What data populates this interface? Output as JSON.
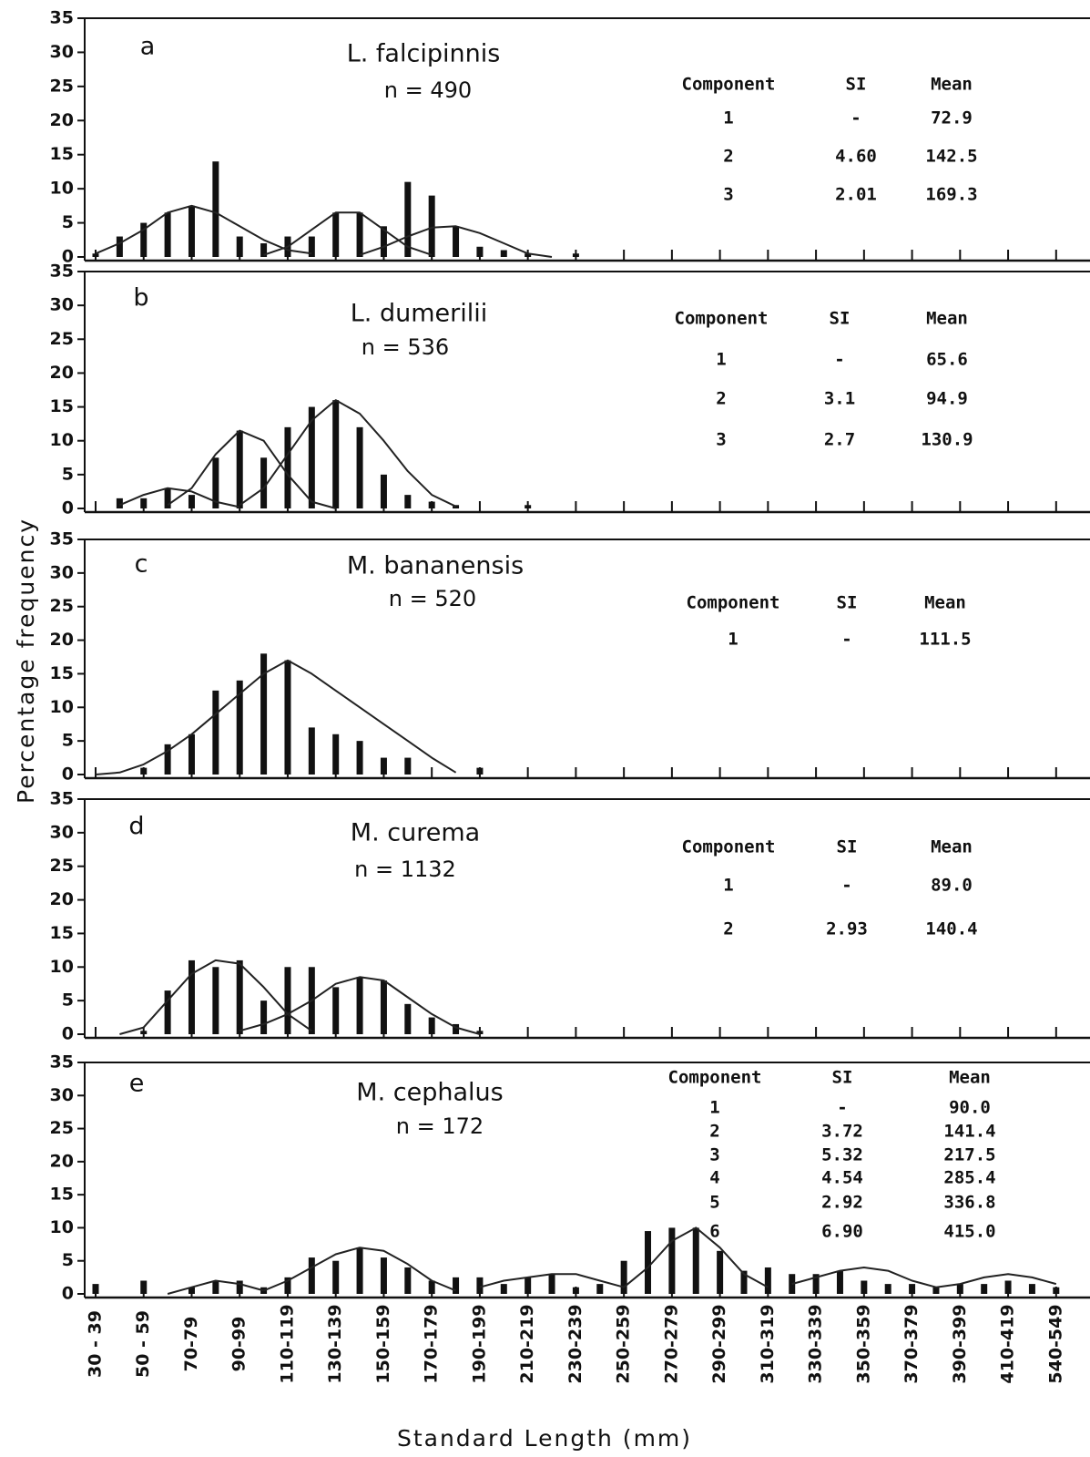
{
  "xlabel": "Standard Length (mm)",
  "ylabel": "Percentage frequency",
  "chart_data": [
    {
      "type": "bar",
      "label": "a",
      "title": "L. falcipinnis",
      "subtitle": "n = 490",
      "color": "#111",
      "ylim": [
        0,
        35
      ],
      "yticks": [
        0,
        5,
        10,
        15,
        20,
        25,
        30,
        35
      ],
      "values": [
        0.5,
        3,
        5,
        6.5,
        7.5,
        14,
        3,
        2,
        3,
        3,
        6.5,
        6.5,
        4.5,
        11,
        9,
        4.5,
        1.5,
        1,
        0.5,
        null,
        0.5,
        null,
        null,
        null,
        null,
        null,
        null,
        null,
        null,
        null,
        null,
        null,
        null,
        null,
        null,
        null,
        null,
        null,
        null,
        null,
        null
      ],
      "curves": [
        {
          "values": [
            0.5,
            2,
            4,
            6.5,
            7.5,
            6.5,
            4.5,
            2.5,
            1,
            0.5,
            null,
            null,
            null,
            null,
            null,
            null,
            null,
            null,
            null,
            null,
            null,
            null,
            null,
            null,
            null,
            null,
            null,
            null,
            null,
            null,
            null,
            null,
            null,
            null,
            null,
            null,
            null,
            null,
            null,
            null,
            null
          ]
        },
        {
          "values": [
            null,
            null,
            null,
            null,
            null,
            null,
            null,
            0.3,
            1.5,
            4,
            6.5,
            6.5,
            4,
            1.5,
            0.3,
            null,
            null,
            null,
            null,
            null,
            null,
            null,
            null,
            null,
            null,
            null,
            null,
            null,
            null,
            null,
            null,
            null,
            null,
            null,
            null,
            null,
            null,
            null,
            null,
            null,
            null
          ]
        },
        {
          "values": [
            null,
            null,
            null,
            null,
            null,
            null,
            null,
            null,
            null,
            null,
            null,
            0.3,
            1.5,
            3,
            4.3,
            4.5,
            3.5,
            2,
            0.5,
            0,
            null,
            null,
            null,
            null,
            null,
            null,
            null,
            null,
            null,
            null,
            null,
            null,
            null,
            null,
            null,
            null,
            null,
            null,
            null,
            null,
            null
          ]
        }
      ],
      "table": {
        "columns": [
          "Component",
          "SI",
          "Mean"
        ],
        "rows": [
          [
            "1",
            "-",
            "72.9"
          ],
          [
            "2",
            "4.60",
            "142.5"
          ],
          [
            "3",
            "2.01",
            "169.3"
          ]
        ]
      }
    },
    {
      "type": "bar",
      "label": "b",
      "title": "L. dumerilii",
      "subtitle": "n = 536",
      "color": "#111",
      "ylim": [
        0,
        35
      ],
      "yticks": [
        0,
        5,
        10,
        15,
        20,
        25,
        30,
        35
      ],
      "values": [
        null,
        1.5,
        1.5,
        3,
        2,
        7.5,
        11.5,
        7.5,
        12,
        15,
        16,
        12,
        5,
        2,
        1,
        0.5,
        null,
        null,
        0.5,
        null,
        null,
        null,
        null,
        null,
        null,
        null,
        null,
        null,
        null,
        null,
        null,
        null,
        null,
        null,
        null,
        null,
        null,
        null,
        null,
        null,
        null
      ],
      "curves": [
        {
          "values": [
            null,
            0.5,
            2,
            3,
            2.5,
            1,
            0.2,
            null,
            null,
            null,
            null,
            null,
            null,
            null,
            null,
            null,
            null,
            null,
            null,
            null,
            null,
            null,
            null,
            null,
            null,
            null,
            null,
            null,
            null,
            null,
            null,
            null,
            null,
            null,
            null,
            null,
            null,
            null,
            null,
            null,
            null
          ]
        },
        {
          "values": [
            null,
            null,
            null,
            0.5,
            3,
            8,
            11.5,
            10,
            5,
            1,
            0,
            null,
            null,
            null,
            null,
            null,
            null,
            null,
            null,
            null,
            null,
            null,
            null,
            null,
            null,
            null,
            null,
            null,
            null,
            null,
            null,
            null,
            null,
            null,
            null,
            null,
            null,
            null,
            null,
            null,
            null
          ]
        },
        {
          "values": [
            null,
            null,
            null,
            null,
            null,
            null,
            0.5,
            3,
            8,
            13,
            16,
            14,
            10,
            5.5,
            2,
            0.3,
            null,
            null,
            null,
            null,
            null,
            null,
            null,
            null,
            null,
            null,
            null,
            null,
            null,
            null,
            null,
            null,
            null,
            null,
            null,
            null,
            null,
            null,
            null,
            null,
            null
          ]
        }
      ],
      "table": {
        "columns": [
          "Component",
          "SI",
          "Mean"
        ],
        "rows": [
          [
            "1",
            "-",
            "65.6"
          ],
          [
            "2",
            "3.1",
            "94.9"
          ],
          [
            "3",
            "2.7",
            "130.9"
          ]
        ]
      }
    },
    {
      "type": "bar",
      "label": "c",
      "title": "M. bananensis",
      "subtitle": "n = 520",
      "color": "#111",
      "ylim": [
        0,
        35
      ],
      "yticks": [
        0,
        5,
        10,
        15,
        20,
        25,
        30,
        35
      ],
      "values": [
        null,
        null,
        1,
        4.5,
        6,
        12.5,
        14,
        18,
        17,
        7,
        6,
        5,
        2.5,
        2.5,
        null,
        null,
        1,
        null,
        null,
        null,
        null,
        null,
        null,
        null,
        null,
        null,
        null,
        null,
        null,
        null,
        null,
        null,
        null,
        null,
        null,
        null,
        null,
        null,
        null,
        null,
        null
      ],
      "curves": [
        {
          "values": [
            0,
            0.3,
            1.5,
            3.5,
            6,
            9,
            12,
            15,
            17,
            15,
            12.5,
            10,
            7.5,
            5,
            2.5,
            0.3,
            null,
            null,
            null,
            null,
            null,
            null,
            null,
            null,
            null,
            null,
            null,
            null,
            null,
            null,
            null,
            null,
            null,
            null,
            null,
            null,
            null,
            null,
            null,
            null,
            null
          ]
        }
      ],
      "table": {
        "columns": [
          "Component",
          "SI",
          "Mean"
        ],
        "rows": [
          [
            "1",
            "-",
            "111.5"
          ]
        ]
      }
    },
    {
      "type": "bar",
      "label": "d",
      "title": "M. curema",
      "subtitle": "n = 1132",
      "color": "#111",
      "ylim": [
        0,
        35
      ],
      "yticks": [
        0,
        5,
        10,
        15,
        20,
        25,
        30,
        35
      ],
      "values": [
        null,
        null,
        0.5,
        6.5,
        11,
        10,
        11,
        5,
        10,
        10,
        7,
        8.5,
        8,
        4.5,
        2.5,
        1.5,
        0.5,
        null,
        null,
        null,
        null,
        null,
        null,
        null,
        null,
        null,
        null,
        null,
        null,
        null,
        null,
        null,
        null,
        null,
        null,
        null,
        null,
        null,
        null,
        null,
        null
      ],
      "curves": [
        {
          "values": [
            null,
            0,
            1,
            5,
            9,
            11,
            10.5,
            7,
            3,
            0.5,
            null,
            null,
            null,
            null,
            null,
            null,
            null,
            null,
            null,
            null,
            null,
            null,
            null,
            null,
            null,
            null,
            null,
            null,
            null,
            null,
            null,
            null,
            null,
            null,
            null,
            null,
            null,
            null,
            null,
            null,
            null
          ]
        },
        {
          "values": [
            null,
            null,
            null,
            null,
            null,
            null,
            0.5,
            1.5,
            3,
            5,
            7.5,
            8.5,
            8,
            5.5,
            3,
            1,
            0,
            null,
            null,
            null,
            null,
            null,
            null,
            null,
            null,
            null,
            null,
            null,
            null,
            null,
            null,
            null,
            null,
            null,
            null,
            null,
            null,
            null,
            null,
            null,
            null
          ]
        }
      ],
      "table": {
        "columns": [
          "Component",
          "SI",
          "Mean"
        ],
        "rows": [
          [
            "1",
            "-",
            "89.0"
          ],
          [
            "2",
            "2.93",
            "140.4"
          ]
        ]
      }
    },
    {
      "type": "bar",
      "label": "e",
      "title": "M. cephalus",
      "subtitle": "n = 172",
      "color": "#111",
      "ylim": [
        0,
        35
      ],
      "yticks": [
        0,
        5,
        10,
        15,
        20,
        25,
        30,
        35
      ],
      "categories": [
        "30 - 39",
        null,
        "50 - 59",
        null,
        "70-79",
        null,
        "90-99",
        null,
        "110-119",
        null,
        "130-139",
        null,
        "150-159",
        null,
        "170-179",
        null,
        "190-199",
        null,
        "210-219",
        null,
        "230-239",
        null,
        "250-259",
        null,
        "270-279",
        null,
        "290-299",
        null,
        "310-319",
        null,
        "330-339",
        null,
        "350-359",
        null,
        "370-379",
        null,
        "390-399",
        null,
        "410-419",
        null,
        "540-549"
      ],
      "values": [
        1.5,
        null,
        2,
        null,
        1,
        2,
        2,
        1,
        2.5,
        5.5,
        5,
        7,
        5.5,
        4,
        2,
        2.5,
        2.5,
        1.5,
        2.5,
        3,
        1,
        1.5,
        5,
        9.5,
        10,
        10,
        6.5,
        3.5,
        4,
        3,
        3,
        3.5,
        2,
        1.5,
        1.5,
        1,
        1.5,
        1.5,
        2,
        1.5,
        1
      ],
      "curves": [
        {
          "values": [
            null,
            null,
            null,
            0,
            1,
            2,
            1.5,
            0.5,
            null,
            null,
            null,
            null,
            null,
            null,
            null,
            null,
            null,
            null,
            null,
            null,
            null,
            null,
            null,
            null,
            null,
            null,
            null,
            null,
            null,
            null,
            null,
            null,
            null,
            null,
            null,
            null,
            null,
            null,
            null,
            null,
            null
          ]
        },
        {
          "values": [
            null,
            null,
            null,
            null,
            null,
            null,
            null,
            0.5,
            2,
            4,
            6,
            7,
            6.5,
            4.5,
            2,
            0.5,
            null,
            null,
            null,
            null,
            null,
            null,
            null,
            null,
            null,
            null,
            null,
            null,
            null,
            null,
            null,
            null,
            null,
            null,
            null,
            null,
            null,
            null,
            null,
            null,
            null
          ]
        },
        {
          "values": [
            null,
            null,
            null,
            null,
            null,
            null,
            null,
            null,
            null,
            null,
            null,
            null,
            null,
            null,
            null,
            null,
            1,
            2,
            2.5,
            3,
            3,
            2,
            1,
            null,
            null,
            null,
            null,
            null,
            null,
            null,
            null,
            null,
            null,
            null,
            null,
            null,
            null,
            null,
            null,
            null,
            null
          ]
        },
        {
          "values": [
            null,
            null,
            null,
            null,
            null,
            null,
            null,
            null,
            null,
            null,
            null,
            null,
            null,
            null,
            null,
            null,
            null,
            null,
            null,
            null,
            null,
            null,
            1,
            4,
            8,
            10,
            7,
            3,
            1,
            null,
            null,
            null,
            null,
            null,
            null,
            null,
            null,
            null,
            null,
            null,
            null
          ]
        },
        {
          "values": [
            null,
            null,
            null,
            null,
            null,
            null,
            null,
            null,
            null,
            null,
            null,
            null,
            null,
            null,
            null,
            null,
            null,
            null,
            null,
            null,
            null,
            null,
            null,
            null,
            null,
            null,
            null,
            null,
            null,
            1.5,
            2.5,
            3.5,
            4,
            3.5,
            2,
            1,
            null,
            null,
            null,
            null,
            null
          ]
        },
        {
          "values": [
            null,
            null,
            null,
            null,
            null,
            null,
            null,
            null,
            null,
            null,
            null,
            null,
            null,
            null,
            null,
            null,
            null,
            null,
            null,
            null,
            null,
            null,
            null,
            null,
            null,
            null,
            null,
            null,
            null,
            null,
            null,
            null,
            null,
            null,
            null,
            1,
            1.5,
            2.5,
            3,
            2.5,
            1.5
          ]
        }
      ],
      "table": {
        "columns": [
          "Component",
          "SI",
          "Mean"
        ],
        "rows": [
          [
            "1",
            "-",
            "90.0"
          ],
          [
            "2",
            "3.72",
            "141.4"
          ],
          [
            "3",
            "5.32",
            "217.5"
          ],
          [
            "4",
            "4.54",
            "285.4"
          ],
          [
            "5",
            "2.92",
            "336.8"
          ],
          [
            "6",
            "6.90",
            "415.0"
          ]
        ]
      }
    }
  ]
}
